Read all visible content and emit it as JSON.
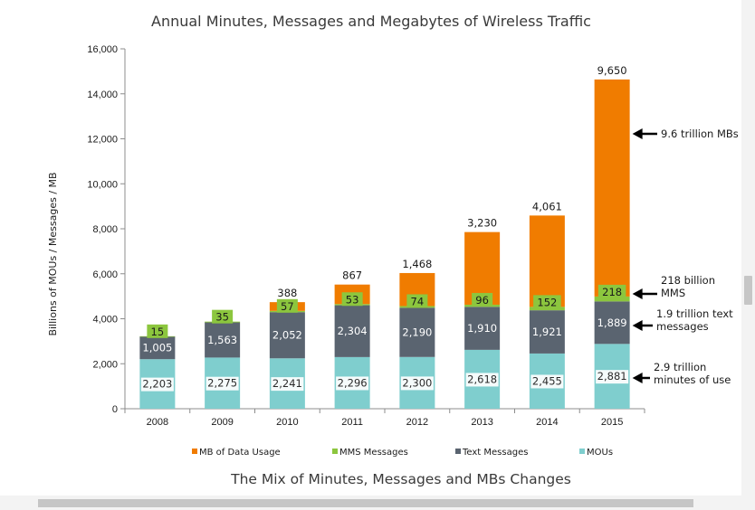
{
  "chart_data": {
    "type": "bar",
    "stacked": true,
    "title": "Annual Minutes, Messages  and Megabytes of Wireless Traffic",
    "subtitle": "The Mix of Minutes, Messages and MBs Changes",
    "ylabel": "Billions of MOUs / Messages / MB",
    "xlabel": "",
    "ylim": [
      0,
      16000
    ],
    "yticks": [
      "0",
      "2,000",
      "4,000",
      "6,000",
      "8,000",
      "10,000",
      "12,000",
      "14,000",
      "16,000"
    ],
    "categories": [
      "2008",
      "2009",
      "2010",
      "2011",
      "2012",
      "2013",
      "2014",
      "2015"
    ],
    "series": [
      {
        "name": "MOUs",
        "values": [
          2203,
          2275,
          2241,
          2296,
          2300,
          2618,
          2455,
          2881
        ],
        "labels": [
          "2,203",
          "2,275",
          "2,241",
          "2,296",
          "2,300",
          "2,618",
          "2,455",
          "2,881"
        ],
        "color": "#7fcece"
      },
      {
        "name": "Text Messages",
        "values": [
          1005,
          1563,
          2052,
          2304,
          2190,
          1910,
          1921,
          1889
        ],
        "labels": [
          "1,005",
          "1,563",
          "2,052",
          "2,304",
          "2,190",
          "1,910",
          "1,921",
          "1,889"
        ],
        "color": "#5a6470"
      },
      {
        "name": "MMS Messages",
        "values": [
          15,
          35,
          57,
          53,
          74,
          96,
          152,
          218
        ],
        "labels": [
          "15",
          "35",
          "57",
          "53",
          "74",
          "96",
          "152",
          "218"
        ],
        "color": "#8cc63e"
      },
      {
        "name": "MB of Data Usage",
        "values": [
          0,
          0,
          388,
          867,
          1468,
          3230,
          4061,
          9650
        ],
        "labels": [
          "",
          "",
          "388",
          "867",
          "1,468",
          "3,230",
          "4,061",
          "9,650"
        ],
        "color": "#f07c00"
      }
    ],
    "legend": {
      "position": "bottom",
      "entries": [
        "MB of Data Usage",
        "MMS Messages",
        "Text Messages",
        "MOUs"
      ]
    },
    "annotations": [
      {
        "text_lines": [
          "9.6 trillion MBs"
        ],
        "target_series": "MB of Data Usage"
      },
      {
        "text_lines": [
          "218 billion",
          "MMS"
        ],
        "target_series": "MMS Messages"
      },
      {
        "text_lines": [
          "1.9 trillion text",
          "messages"
        ],
        "target_series": "Text Messages"
      },
      {
        "text_lines": [
          "2.9 trillion",
          "minutes of use"
        ],
        "target_series": "MOUs"
      }
    ],
    "grid": false
  },
  "colors": {
    "mou": "#7fcece",
    "text": "#5a6470",
    "mms": "#8cc63e",
    "data": "#f07c00",
    "axis": "#8c8c8c"
  }
}
